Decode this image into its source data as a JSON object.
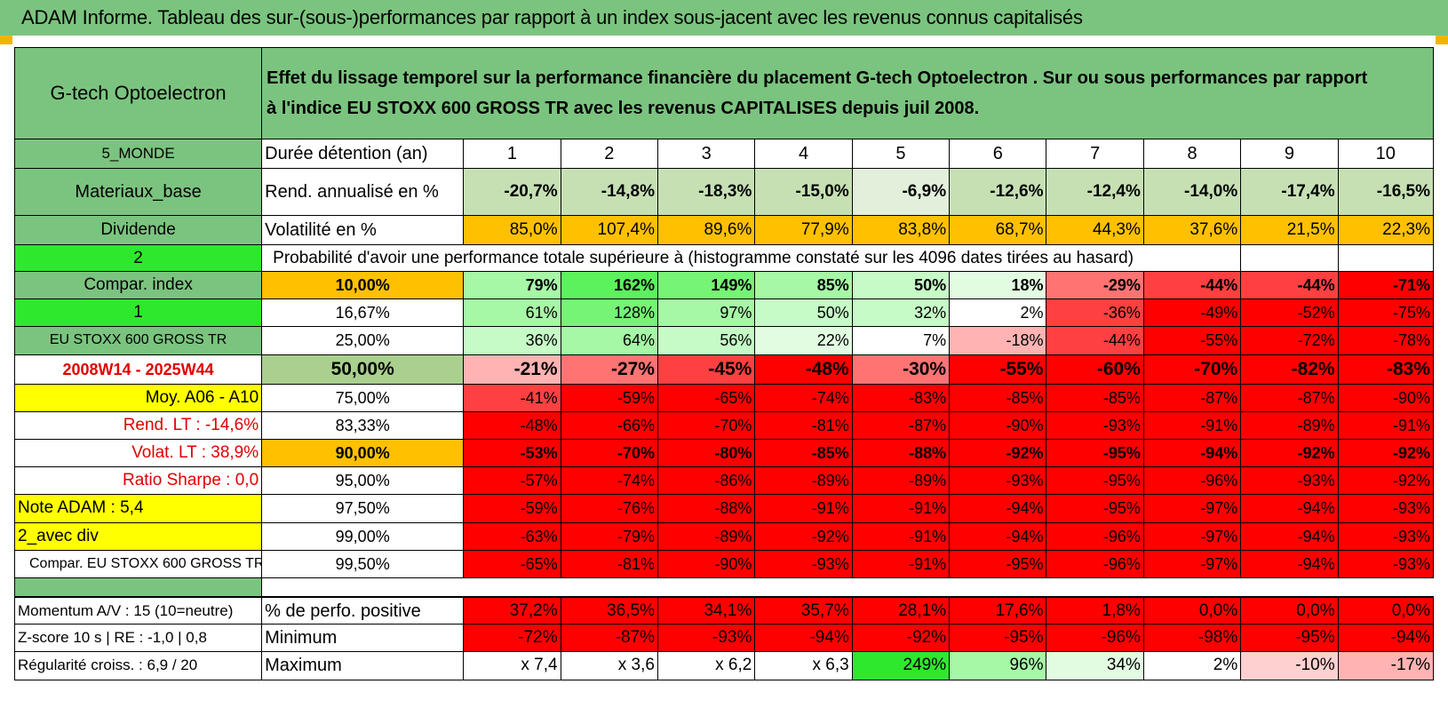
{
  "title": "ADAM Informe. Tableau des sur-(sous-)performances par rapport à un index sous-jacent avec les revenus connus capitalisés",
  "fund_name": "G-tech Optoelectron",
  "header_text_line1": "Effet du lissage temporel sur la performance financière du placement G-tech Optoelectron . Sur ou sous performances par rapport",
  "header_text_line2": "à l'indice EU STOXX 600 GROSS TR avec les revenus CAPITALISES depuis juil 2008.",
  "left": {
    "region": "5_MONDE",
    "sector": "Materiaux_base",
    "dividend": "Dividende",
    "value_2": "2",
    "compar_index": "Compar. index",
    "value_1": "1",
    "index_name": "EU STOXX 600 GROSS TR",
    "period": "2008W14 - 2025W44",
    "moy": "Moy. A06 - A10",
    "rend_lt": "Rend. LT :    -14,6%",
    "volat_lt": "Volat. LT :    38,9%",
    "sharpe": "Ratio Sharpe :    0,0",
    "note": "Note ADAM : 5,4",
    "avec_div": "2_avec div",
    "compar_index_full": "Compar. EU STOXX 600 GROSS TR",
    "momentum": "Momentum A/V : 15 (10=neutre)",
    "zscore": "Z-score 10 s | RE : -1,0 | 0,8",
    "regularite": "Régularité croiss. : 6,9 / 20"
  },
  "row_labels": {
    "duree": "Durée détention (an)",
    "rend": "Rend. annualisé en %",
    "volat": "Volatilité en %",
    "proba": "Probabilité d'avoir une performance totale supérieure à (histogramme constaté sur les 4096 dates tirées au hasard)",
    "pos": "% de perfo. positive",
    "min": "Minimum",
    "max": "Maximum"
  },
  "years": [
    "1",
    "2",
    "3",
    "4",
    "5",
    "6",
    "7",
    "8",
    "9",
    "10"
  ],
  "rend": [
    "-20,7%",
    "-14,8%",
    "-18,3%",
    "-15,0%",
    "-6,9%",
    "-12,6%",
    "-12,4%",
    "-14,0%",
    "-17,4%",
    "-16,5%"
  ],
  "volat": [
    "85,0%",
    "107,4%",
    "89,6%",
    "77,9%",
    "83,8%",
    "68,7%",
    "44,3%",
    "37,6%",
    "21,5%",
    "22,3%"
  ],
  "percentiles": [
    {
      "p": "10,00%",
      "vals": [
        "79%",
        "162%",
        "149%",
        "85%",
        "50%",
        "18%",
        "-29%",
        "-44%",
        "-44%",
        "-71%"
      ]
    },
    {
      "p": "16,67%",
      "vals": [
        "61%",
        "128%",
        "97%",
        "50%",
        "32%",
        "2%",
        "-36%",
        "-49%",
        "-52%",
        "-75%"
      ]
    },
    {
      "p": "25,00%",
      "vals": [
        "36%",
        "64%",
        "56%",
        "22%",
        "7%",
        "-18%",
        "-44%",
        "-55%",
        "-72%",
        "-78%"
      ]
    },
    {
      "p": "50,00%",
      "vals": [
        "-21%",
        "-27%",
        "-45%",
        "-48%",
        "-30%",
        "-55%",
        "-60%",
        "-70%",
        "-82%",
        "-83%"
      ]
    },
    {
      "p": "75,00%",
      "vals": [
        "-41%",
        "-59%",
        "-65%",
        "-74%",
        "-83%",
        "-85%",
        "-85%",
        "-87%",
        "-87%",
        "-90%"
      ]
    },
    {
      "p": "83,33%",
      "vals": [
        "-48%",
        "-66%",
        "-70%",
        "-81%",
        "-87%",
        "-90%",
        "-93%",
        "-91%",
        "-89%",
        "-91%"
      ]
    },
    {
      "p": "90,00%",
      "vals": [
        "-53%",
        "-70%",
        "-80%",
        "-85%",
        "-88%",
        "-92%",
        "-95%",
        "-94%",
        "-92%",
        "-92%"
      ]
    },
    {
      "p": "95,00%",
      "vals": [
        "-57%",
        "-74%",
        "-86%",
        "-89%",
        "-89%",
        "-93%",
        "-95%",
        "-96%",
        "-93%",
        "-92%"
      ]
    },
    {
      "p": "97,50%",
      "vals": [
        "-59%",
        "-76%",
        "-88%",
        "-91%",
        "-91%",
        "-94%",
        "-95%",
        "-97%",
        "-94%",
        "-93%"
      ]
    },
    {
      "p": "99,00%",
      "vals": [
        "-63%",
        "-79%",
        "-89%",
        "-92%",
        "-91%",
        "-94%",
        "-96%",
        "-97%",
        "-94%",
        "-93%"
      ]
    },
    {
      "p": "99,50%",
      "vals": [
        "-65%",
        "-81%",
        "-90%",
        "-93%",
        "-91%",
        "-95%",
        "-96%",
        "-97%",
        "-94%",
        "-93%"
      ]
    }
  ],
  "pos": [
    "37,2%",
    "36,5%",
    "34,1%",
    "35,7%",
    "28,1%",
    "17,6%",
    "1,8%",
    "0,0%",
    "0,0%",
    "0,0%"
  ],
  "min": [
    "-72%",
    "-87%",
    "-93%",
    "-94%",
    "-92%",
    "-95%",
    "-96%",
    "-98%",
    "-95%",
    "-94%"
  ],
  "max": [
    "x 7,4",
    "x 3,6",
    "x 6,2",
    "x 6,3",
    "249%",
    "96%",
    "34%",
    "2%",
    "-10%",
    "-17%"
  ],
  "colors": {
    "header_green": "#7bc47f",
    "bright_green": "#2ee82e",
    "yellow": "#ffff00",
    "orange": "#ffc000",
    "red": "#ff0000",
    "sage": "#a9d08e"
  }
}
